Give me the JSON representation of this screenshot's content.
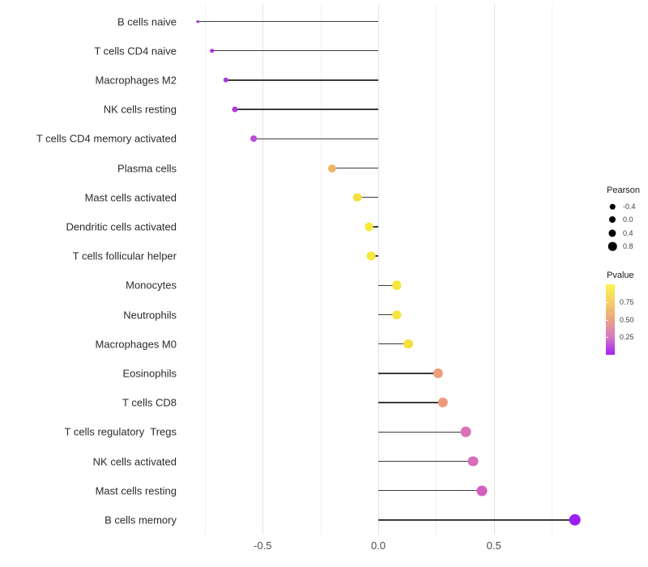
{
  "chart_data": {
    "type": "scatter",
    "subtype": "lollipop",
    "title": "",
    "xlabel": "",
    "ylabel": "",
    "x_axis": {
      "ticks": [
        {
          "value": -0.5,
          "label": "-0.5"
        },
        {
          "value": 0.0,
          "label": "0.0"
        },
        {
          "value": 0.5,
          "label": "0.5"
        }
      ],
      "minor_gridlines": [
        -0.75,
        -0.25,
        0.25,
        0.75
      ],
      "range": [
        -0.86,
        0.93
      ]
    },
    "points": [
      {
        "label": "B cells naive",
        "pearson": -0.78,
        "color": "#AB32DE"
      },
      {
        "label": "T cells CD4 naive",
        "pearson": -0.72,
        "color": "#AC34DE"
      },
      {
        "label": "Macrophages M2",
        "pearson": -0.66,
        "color": "#AD36DF"
      },
      {
        "label": "NK cells resting",
        "pearson": -0.62,
        "color": "#AF3AE0"
      },
      {
        "label": "T cells CD4 memory activated",
        "pearson": -0.54,
        "color": "#B84BD7"
      },
      {
        "label": "Plasma cells",
        "pearson": -0.2,
        "color": "#EFB56A"
      },
      {
        "label": "Mast cells activated",
        "pearson": -0.09,
        "color": "#F4E03E"
      },
      {
        "label": "Dendritic cells activated",
        "pearson": -0.04,
        "color": "#F6E93A"
      },
      {
        "label": "T cells follicular helper",
        "pearson": -0.03,
        "color": "#F6E93A"
      },
      {
        "label": "Monocytes",
        "pearson": 0.08,
        "color": "#F5E63C"
      },
      {
        "label": "Neutrophils",
        "pearson": 0.08,
        "color": "#F5E63C"
      },
      {
        "label": "Macrophages M0",
        "pearson": 0.13,
        "color": "#F4E038"
      },
      {
        "label": "Eosinophils",
        "pearson": 0.26,
        "color": "#EC9E7C"
      },
      {
        "label": "T cells CD8",
        "pearson": 0.28,
        "color": "#EB9B7B"
      },
      {
        "label": "T cells regulatory  Tregs",
        "pearson": 0.38,
        "color": "#D873B8"
      },
      {
        "label": "NK cells activated",
        "pearson": 0.41,
        "color": "#D56FBA"
      },
      {
        "label": "Mast cells resting",
        "pearson": 0.45,
        "color": "#D55FBE"
      },
      {
        "label": "B cells memory",
        "pearson": 0.85,
        "color": "#9B1FF0"
      }
    ],
    "size_legend": {
      "title": "Pearson",
      "entries": [
        {
          "label": "-0.4",
          "value": -0.4
        },
        {
          "label": "0.0",
          "value": 0.0
        },
        {
          "label": "0.4",
          "value": 0.4
        },
        {
          "label": "0.8",
          "value": 0.8
        }
      ]
    },
    "color_legend": {
      "title": "Pvalue",
      "tick_labels": [
        {
          "label": "0.75",
          "value": 0.75
        },
        {
          "label": "0.50",
          "value": 0.5
        },
        {
          "label": "0.25",
          "value": 0.25
        }
      ],
      "gradient_stops": [
        {
          "at": 0.0,
          "color": "#FBF34E"
        },
        {
          "at": 0.27,
          "color": "#F6CE68"
        },
        {
          "at": 0.49,
          "color": "#EAA47F"
        },
        {
          "at": 0.75,
          "color": "#D678C6"
        },
        {
          "at": 1.0,
          "color": "#A721F4"
        }
      ],
      "range": [
        0,
        1
      ]
    },
    "colors": {
      "segment": "#3b3b3b",
      "major_grid": "#e3e3e3",
      "minor_grid": "#f1f1f1",
      "background": "#ffffff"
    },
    "legend_position": "right",
    "grid": "vertical-only"
  }
}
